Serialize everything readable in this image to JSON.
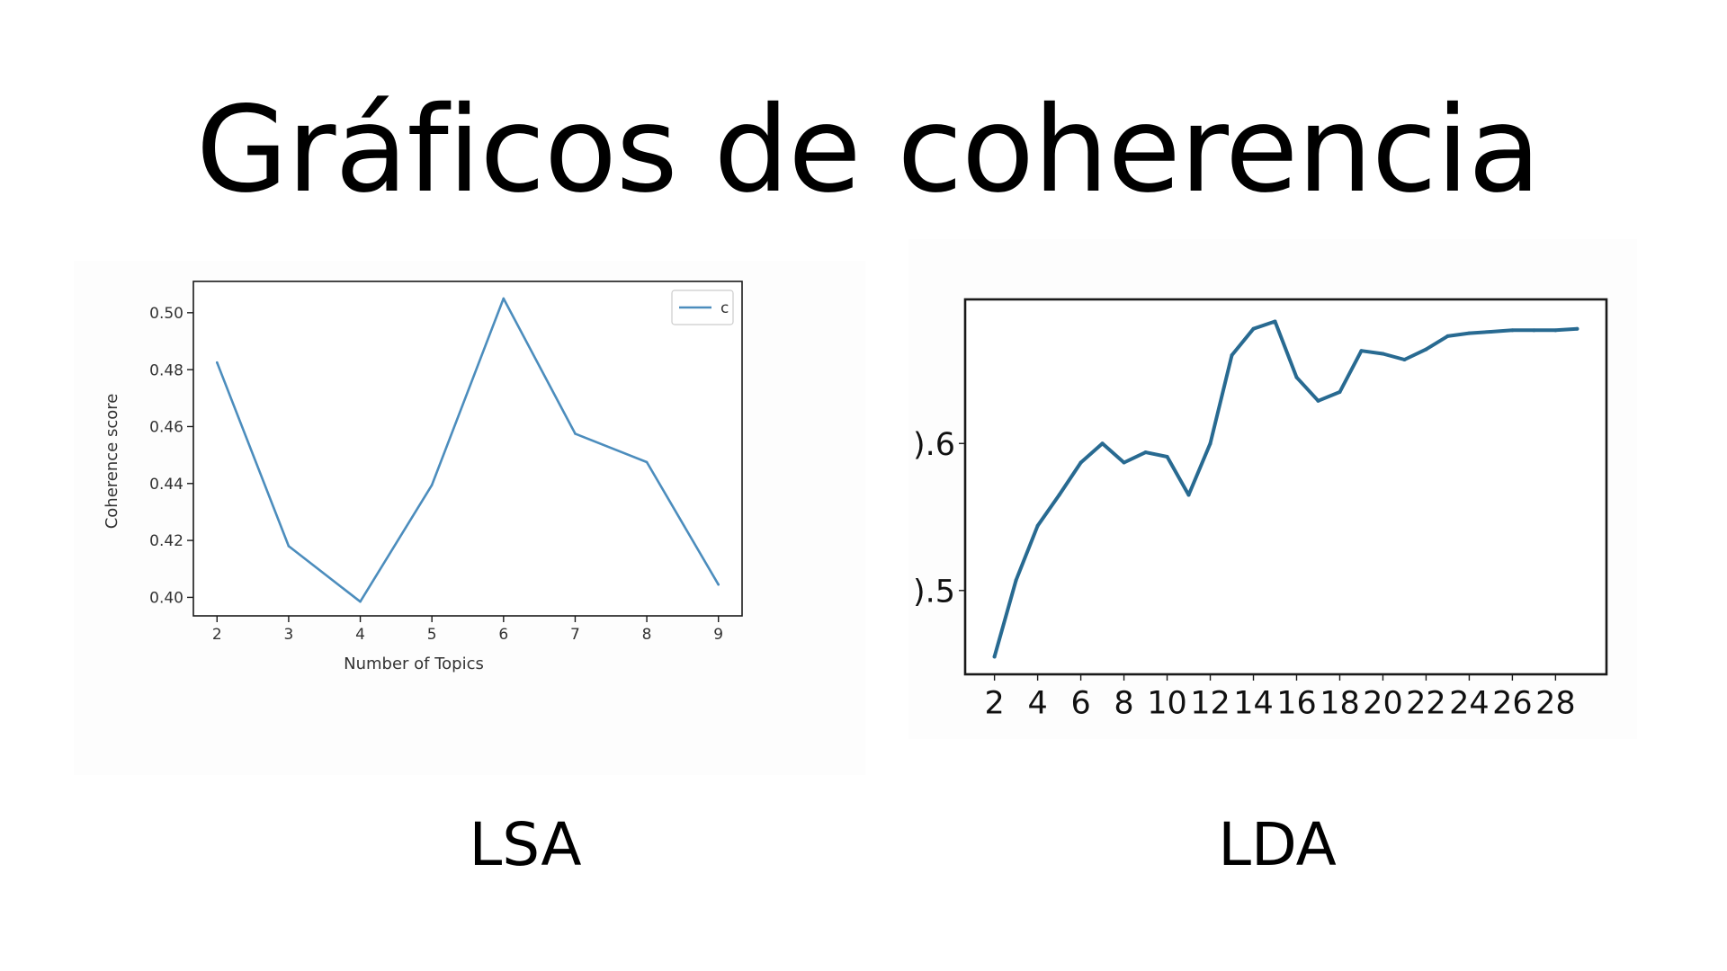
{
  "title": "Gráficos de coherencia",
  "captions": {
    "lsa": "LSA",
    "lda": "LDA"
  },
  "colors": {
    "lsa_line": "#4c8dbd",
    "lda_line": "#286a91",
    "axis": "#222222"
  },
  "chart_data": [
    {
      "type": "line",
      "id": "lsa",
      "xlabel": "Number of Topics",
      "ylabel": "Coherence score",
      "x": [
        2,
        3,
        4,
        5,
        6,
        7,
        8,
        9
      ],
      "series": [
        {
          "name": "c",
          "values": [
            0.4825,
            0.418,
            0.3985,
            0.4395,
            0.505,
            0.4575,
            0.4475,
            0.4045
          ]
        }
      ],
      "xlim": [
        1.67,
        9.33
      ],
      "ylim": [
        0.3935,
        0.511
      ],
      "xticks": [
        "2",
        "3",
        "4",
        "5",
        "6",
        "7",
        "8",
        "9"
      ],
      "yticks": [
        "0.40",
        "0.42",
        "0.44",
        "0.46",
        "0.48",
        "0.50"
      ],
      "legend": "top-right",
      "grid": false
    },
    {
      "type": "line",
      "id": "lda",
      "xlabel": "",
      "ylabel": "",
      "x": [
        2,
        3,
        4,
        5,
        6,
        7,
        8,
        9,
        10,
        11,
        12,
        13,
        14,
        15,
        16,
        17,
        18,
        19,
        20,
        21,
        22,
        23,
        24,
        25,
        26,
        27,
        28,
        29
      ],
      "series": [
        {
          "values": [
            0.455,
            0.507,
            0.544,
            0.565,
            0.587,
            0.6,
            0.587,
            0.594,
            0.591,
            0.565,
            0.6,
            0.66,
            0.678,
            0.683,
            0.645,
            0.629,
            0.635,
            0.663,
            0.661,
            0.657,
            0.664,
            0.673,
            0.675,
            0.676,
            0.677,
            0.677,
            0.677,
            0.678
          ]
        }
      ],
      "xlim": [
        0.64,
        30.36
      ],
      "ylim": [
        0.443,
        0.698
      ],
      "xticks": [
        "2",
        "4",
        "6",
        "8",
        "10",
        "12",
        "14",
        "16",
        "18",
        "20",
        "22",
        "24",
        "26",
        "28"
      ],
      "yticks": [
        ").5",
        ").6"
      ],
      "legend": "none",
      "grid": false
    }
  ]
}
